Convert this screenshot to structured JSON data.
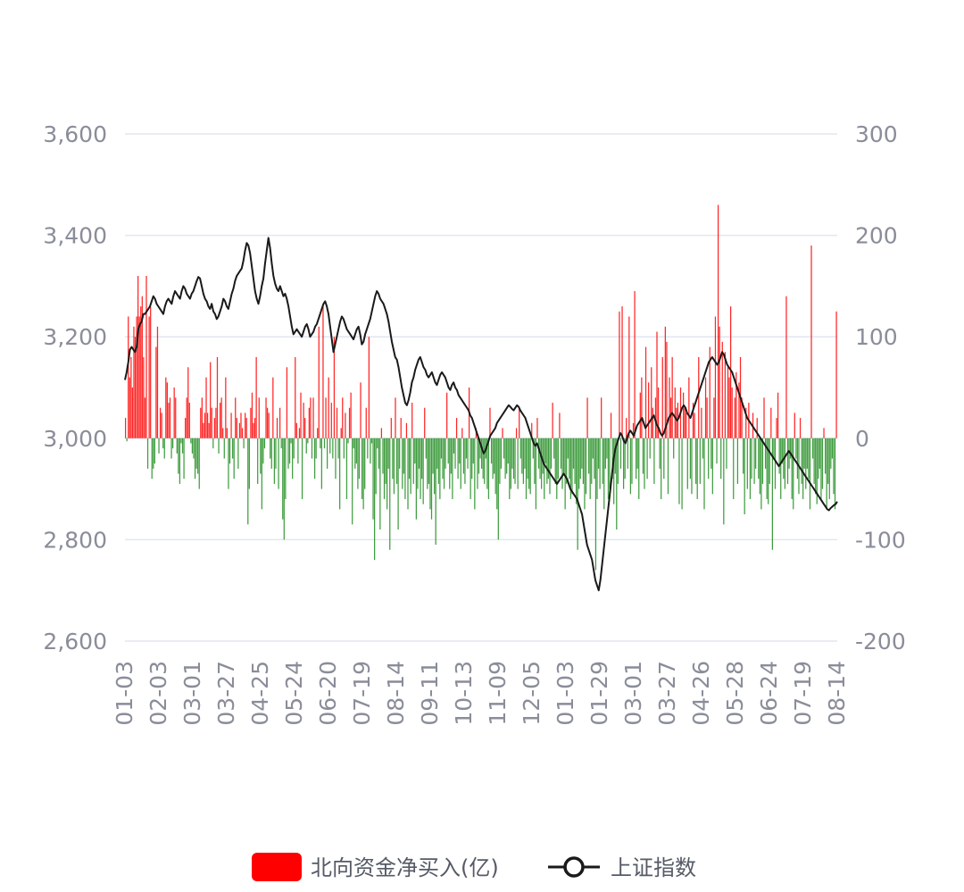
{
  "chart_data": {
    "type": "bar+line",
    "title": "",
    "grid": true,
    "legend_position": "bottom-center",
    "colors": {
      "positive": "#ff0000",
      "negative": "#1e8c1e",
      "line": "#1a1a1a",
      "grid": "#e3e6f0",
      "axis_text": "#8a8d99"
    },
    "left_axis": {
      "series": "上证指数",
      "min": 2600,
      "max": 3600,
      "ticks": [
        2600,
        2800,
        3000,
        3200,
        3400,
        3600
      ],
      "tick_labels": [
        "2,600",
        "2,800",
        "3,000",
        "3,200",
        "3,400",
        "3,600"
      ]
    },
    "right_axis": {
      "series": "北向资金净买入(亿)",
      "min": -200,
      "max": 300,
      "ticks": [
        -200,
        -100,
        0,
        100,
        200,
        300
      ],
      "tick_labels": [
        "-200",
        "-100",
        "0",
        "100",
        "200",
        "300"
      ]
    },
    "x_tick_labels": [
      "01-03",
      "02-03",
      "03-01",
      "03-27",
      "04-25",
      "05-24",
      "06-20",
      "07-19",
      "08-14",
      "09-11",
      "10-13",
      "11-09",
      "12-05",
      "01-03",
      "01-29",
      "03-01",
      "03-27",
      "04-26",
      "05-28",
      "06-24",
      "07-19",
      "08-14"
    ],
    "series": [
      {
        "name": "北向资金净买入(亿)",
        "type": "bar",
        "axis": "right",
        "values": [
          20,
          -3,
          120,
          60,
          80,
          50,
          110,
          100,
          120,
          160,
          120,
          130,
          140,
          80,
          40,
          160,
          -30,
          120,
          130,
          -40,
          -30,
          -25,
          90,
          110,
          -15,
          30,
          25,
          -10,
          -20,
          60,
          55,
          35,
          40,
          -20,
          -10,
          50,
          40,
          -15,
          -35,
          -45,
          -5,
          -15,
          -40,
          20,
          40,
          70,
          35,
          -5,
          -15,
          -20,
          -40,
          -30,
          -35,
          -50,
          30,
          40,
          15,
          25,
          60,
          25,
          15,
          75,
          30,
          -10,
          20,
          30,
          80,
          -15,
          35,
          40,
          10,
          -20,
          60,
          10,
          -50,
          -25,
          25,
          -20,
          -40,
          40,
          20,
          -30,
          15,
          25,
          10,
          -10,
          25,
          20,
          -85,
          -50,
          30,
          45,
          15,
          20,
          80,
          -45,
          40,
          -35,
          -70,
          -25,
          -10,
          40,
          30,
          25,
          -20,
          -30,
          60,
          -45,
          -30,
          20,
          -50,
          30,
          -10,
          -80,
          -100,
          -60,
          70,
          -30,
          -25,
          -5,
          -40,
          -20,
          80,
          15,
          -25,
          10,
          45,
          -60,
          35,
          20,
          -15,
          -5,
          30,
          40,
          -20,
          40,
          -40,
          -20,
          10,
          110,
          -10,
          -50,
          130,
          -10,
          40,
          -30,
          60,
          -15,
          35,
          -20,
          100,
          -40,
          30,
          -20,
          -70,
          10,
          40,
          -20,
          25,
          -60,
          -5,
          30,
          45,
          -85,
          -10,
          -30,
          -25,
          -50,
          -40,
          55,
          -60,
          -70,
          -50,
          30,
          -20,
          100,
          -25,
          -5,
          -80,
          -120,
          -55,
          -10,
          -30,
          -90,
          10,
          -35,
          -60,
          -45,
          -70,
          -30,
          -110,
          20,
          -40,
          -55,
          40,
          -45,
          -90,
          -30,
          20,
          -50,
          -35,
          -60,
          15,
          -70,
          -40,
          -55,
          35,
          -45,
          -25,
          -80,
          -50,
          -30,
          -60,
          -40,
          -65,
          30,
          -20,
          -50,
          -45,
          -70,
          -80,
          -35,
          -55,
          -105,
          -30,
          -45,
          -60,
          -20,
          -40,
          -50,
          -30,
          45,
          -25,
          -50,
          -35,
          -60,
          -15,
          -30,
          20,
          -40,
          -25,
          -50,
          10,
          -35,
          -45,
          -20,
          -30,
          50,
          -60,
          -40,
          -25,
          -70,
          10,
          -50,
          -35,
          -20,
          -30,
          -40,
          -45,
          -20,
          -50,
          -60,
          30,
          -25,
          -40,
          -35,
          -55,
          -70,
          -100,
          -45,
          -30,
          10,
          -20,
          -40,
          -35,
          -25,
          -60,
          -50,
          -30,
          -40,
          -45,
          10,
          -50,
          30,
          -20,
          -35,
          -45,
          -30,
          -60,
          -40,
          -50,
          -55,
          15,
          -20,
          -45,
          -70,
          20,
          -30,
          -40,
          -50,
          -35,
          -60,
          -25,
          -45,
          -40,
          -55,
          -30,
          35,
          -20,
          -45,
          -60,
          -40,
          25,
          -30,
          -50,
          -35,
          -70,
          -45,
          -20,
          -40,
          -60,
          -55,
          -30,
          -45,
          -65,
          -110,
          -50,
          -40,
          -30,
          -45,
          -70,
          -55,
          40,
          -35,
          -60,
          -45,
          -20,
          -40,
          -130,
          -60,
          -30,
          -50,
          40,
          -45,
          -70,
          -30,
          -20,
          -60,
          -50,
          25,
          -40,
          -65,
          -35,
          -90,
          -45,
          125,
          -30,
          130,
          -50,
          -40,
          20,
          -30,
          120,
          -55,
          -45,
          15,
          145,
          -40,
          -30,
          -60,
          45,
          60,
          -35,
          -50,
          90,
          -40,
          55,
          -20,
          70,
          30,
          -45,
          40,
          105,
          50,
          -30,
          -60,
          80,
          -40,
          110,
          95,
          -55,
          60,
          40,
          80,
          -20,
          50,
          30,
          35,
          -65,
          50,
          -70,
          45,
          30,
          25,
          -50,
          60,
          -40,
          -55,
          35,
          25,
          -45,
          -60,
          80,
          -45,
          30,
          -20,
          -70,
          60,
          40,
          -40,
          90,
          -30,
          -55,
          40,
          120,
          -25,
          230,
          110,
          -40,
          95,
          -85,
          85,
          -30,
          70,
          60,
          130,
          50,
          -60,
          40,
          65,
          -45,
          55,
          80,
          40,
          -35,
          -75,
          30,
          -50,
          35,
          -60,
          -40,
          25,
          -45,
          -30,
          20,
          -40,
          -55,
          -70,
          -45,
          40,
          -30,
          -60,
          -65,
          -45,
          30,
          -110,
          -20,
          -50,
          20,
          45,
          -35,
          -60,
          -25,
          -40,
          -50,
          140,
          -45,
          -30,
          -20,
          -60,
          -70,
          25,
          -20,
          -40,
          -55,
          20,
          -45,
          -60,
          -30,
          -50,
          -30,
          -40,
          -70,
          190,
          -20,
          -45,
          -55,
          -65,
          -40,
          -30,
          -60,
          -50,
          10,
          -35,
          -70,
          -45,
          -60,
          -30,
          -20,
          -55,
          -70,
          125
        ]
      },
      {
        "name": "上证指数",
        "type": "line",
        "axis": "left",
        "values": [
          3115,
          3130,
          3150,
          3175,
          3180,
          3175,
          3170,
          3180,
          3215,
          3225,
          3230,
          3245,
          3245,
          3250,
          3255,
          3260,
          3270,
          3280,
          3275,
          3265,
          3260,
          3255,
          3250,
          3245,
          3260,
          3270,
          3275,
          3270,
          3265,
          3280,
          3290,
          3285,
          3280,
          3275,
          3290,
          3300,
          3295,
          3285,
          3280,
          3275,
          3285,
          3290,
          3300,
          3310,
          3318,
          3315,
          3300,
          3285,
          3275,
          3270,
          3260,
          3255,
          3265,
          3250,
          3245,
          3235,
          3240,
          3250,
          3260,
          3275,
          3270,
          3260,
          3255,
          3270,
          3285,
          3295,
          3310,
          3320,
          3325,
          3330,
          3335,
          3350,
          3370,
          3385,
          3380,
          3365,
          3340,
          3315,
          3290,
          3275,
          3265,
          3280,
          3300,
          3315,
          3345,
          3370,
          3395,
          3375,
          3345,
          3320,
          3305,
          3295,
          3290,
          3300,
          3290,
          3280,
          3285,
          3275,
          3260,
          3240,
          3220,
          3205,
          3210,
          3215,
          3210,
          3205,
          3200,
          3210,
          3220,
          3225,
          3215,
          3200,
          3205,
          3210,
          3220,
          3225,
          3235,
          3245,
          3255,
          3265,
          3270,
          3260,
          3245,
          3220,
          3195,
          3170,
          3185,
          3200,
          3215,
          3230,
          3240,
          3235,
          3225,
          3215,
          3210,
          3205,
          3200,
          3195,
          3205,
          3215,
          3220,
          3205,
          3185,
          3190,
          3205,
          3215,
          3225,
          3235,
          3250,
          3265,
          3280,
          3290,
          3285,
          3275,
          3270,
          3265,
          3255,
          3245,
          3230,
          3210,
          3190,
          3175,
          3160,
          3155,
          3140,
          3120,
          3100,
          3085,
          3070,
          3065,
          3075,
          3090,
          3110,
          3120,
          3135,
          3145,
          3155,
          3160,
          3150,
          3140,
          3135,
          3125,
          3120,
          3125,
          3130,
          3120,
          3110,
          3105,
          3115,
          3125,
          3130,
          3125,
          3120,
          3110,
          3100,
          3095,
          3105,
          3110,
          3100,
          3095,
          3085,
          3080,
          3075,
          3070,
          3065,
          3060,
          3055,
          3045,
          3040,
          3030,
          3020,
          3010,
          3000,
          2990,
          2980,
          2970,
          2975,
          2985,
          2995,
          3005,
          3010,
          3015,
          3020,
          3030,
          3035,
          3040,
          3045,
          3050,
          3055,
          3060,
          3065,
          3062,
          3058,
          3055,
          3060,
          3065,
          3062,
          3055,
          3050,
          3045,
          3040,
          3030,
          3020,
          3010,
          3000,
          2990,
          2985,
          2990,
          2980,
          2970,
          2960,
          2950,
          2945,
          2940,
          2935,
          2930,
          2925,
          2920,
          2915,
          2910,
          2915,
          2920,
          2925,
          2930,
          2925,
          2920,
          2910,
          2900,
          2895,
          2890,
          2885,
          2880,
          2870,
          2860,
          2850,
          2830,
          2810,
          2790,
          2780,
          2770,
          2760,
          2740,
          2720,
          2710,
          2700,
          2720,
          2750,
          2780,
          2810,
          2840,
          2870,
          2900,
          2930,
          2960,
          2980,
          2990,
          3000,
          3010,
          3005,
          2995,
          2990,
          3000,
          3010,
          3015,
          3010,
          3005,
          3015,
          3025,
          3030,
          3035,
          3040,
          3030,
          3020,
          3025,
          3030,
          3035,
          3040,
          3045,
          3035,
          3025,
          3020,
          3010,
          3005,
          3010,
          3020,
          3030,
          3040,
          3045,
          3050,
          3045,
          3040,
          3035,
          3040,
          3050,
          3060,
          3065,
          3060,
          3050,
          3045,
          3040,
          3050,
          3060,
          3070,
          3080,
          3090,
          3100,
          3110,
          3120,
          3130,
          3140,
          3150,
          3155,
          3160,
          3155,
          3150,
          3145,
          3150,
          3160,
          3170,
          3165,
          3155,
          3145,
          3140,
          3135,
          3130,
          3120,
          3110,
          3100,
          3090,
          3080,
          3070,
          3060,
          3050,
          3040,
          3035,
          3030,
          3025,
          3020,
          3015,
          3010,
          3005,
          3000,
          2995,
          2990,
          2985,
          2980,
          2975,
          2970,
          2965,
          2960,
          2955,
          2950,
          2945,
          2950,
          2955,
          2960,
          2965,
          2970,
          2975,
          2970,
          2965,
          2960,
          2955,
          2950,
          2945,
          2940,
          2935,
          2930,
          2925,
          2920,
          2915,
          2910,
          2905,
          2900,
          2895,
          2890,
          2885,
          2880,
          2875,
          2870,
          2865,
          2860,
          2858,
          2862,
          2865,
          2868,
          2870,
          2875
        ]
      }
    ]
  },
  "legend": [
    {
      "label": "北向资金净买入(亿)",
      "color": "#ff0000",
      "marker": "rect"
    },
    {
      "label": "上证指数",
      "color": "#1a1a1a",
      "marker": "line-circle"
    }
  ]
}
